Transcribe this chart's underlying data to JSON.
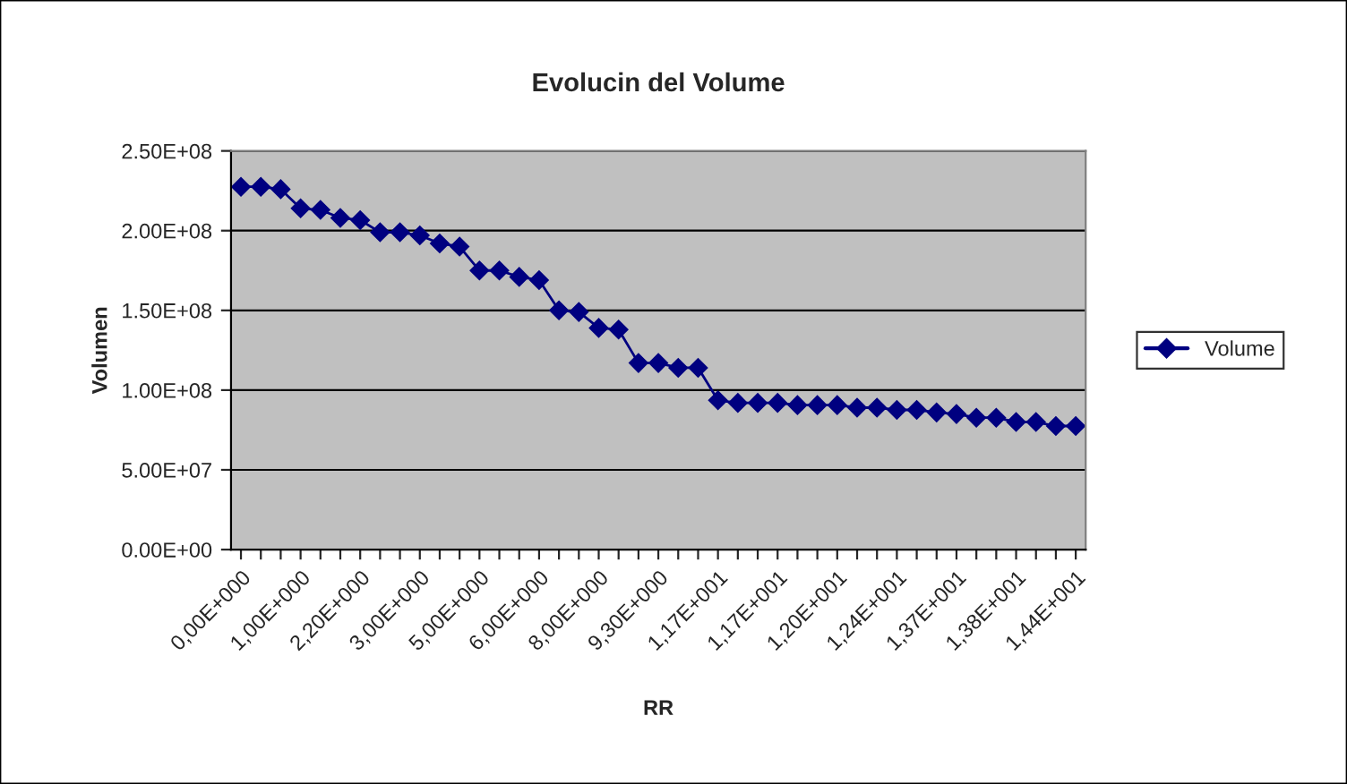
{
  "chart_data": {
    "type": "line",
    "title": "Evolucin del Volume",
    "xlabel": "RR",
    "ylabel": "Volumen",
    "categories": [
      "0,00E+000",
      null,
      null,
      "1,00E+000",
      null,
      null,
      "2,20E+000",
      null,
      null,
      "3,00E+000",
      null,
      null,
      "5,00E+000",
      null,
      null,
      "6,00E+000",
      null,
      null,
      "8,00E+000",
      null,
      null,
      "9,30E+000",
      null,
      null,
      "1,17E+001",
      null,
      null,
      "1,17E+001",
      null,
      null,
      "1,20E+001",
      null,
      null,
      "1,24E+001",
      null,
      null,
      "1,37E+001",
      null,
      null,
      "1,38E+001",
      null,
      null,
      "1,44E+001"
    ],
    "series": [
      {
        "name": "Volume",
        "color": "#000080",
        "values": [
          227500000,
          227500000,
          226000000,
          214000000,
          213000000,
          208000000,
          206600000,
          199000000,
          199000000,
          197000000,
          192000000,
          190000000,
          175000000,
          175000000,
          171000000,
          169000000,
          150000000,
          149000000,
          139000000,
          138000000,
          117000000,
          117000000,
          114000000,
          114000000,
          93600000,
          92000000,
          92000000,
          92000000,
          90600000,
          90600000,
          90600000,
          89000000,
          89000000,
          87600000,
          87600000,
          86000000,
          85000000,
          82700000,
          82700000,
          80000000,
          80000000,
          77500000,
          77500000
        ]
      }
    ],
    "ylim": [
      0,
      250000000
    ],
    "yticks": [
      {
        "value": 0,
        "label": "0.00E+00"
      },
      {
        "value": 50000000,
        "label": "5.00E+07"
      },
      {
        "value": 100000000,
        "label": "1.00E+08"
      },
      {
        "value": 150000000,
        "label": "1.50E+08"
      },
      {
        "value": 200000000,
        "label": "2.00E+08"
      },
      {
        "value": 250000000,
        "label": "2.50E+08"
      }
    ],
    "grid": "y",
    "legend": "right",
    "marker": "diamond",
    "line_style": "solid"
  }
}
